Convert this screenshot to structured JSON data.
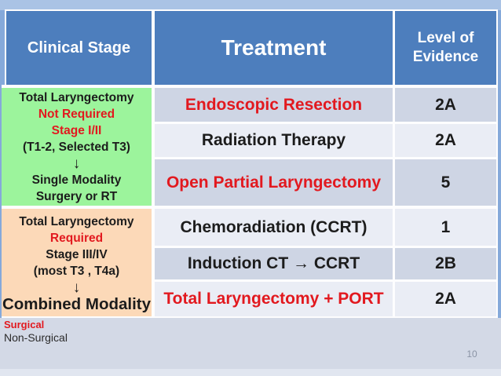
{
  "colors": {
    "slide_border_blue": "#85a9da",
    "top_strip_blue": "#aac3e5",
    "header_blue": "#4d7ebd",
    "header_text": "#ffffff",
    "row_dark": "#ced5e4",
    "row_light": "#eaedf5",
    "stage_green": "#9cf49c",
    "stage_peach": "#fcd9b8",
    "red_text": "#e2191f",
    "black_text": "#1c1c1c",
    "below_table_bg": "#d3d9e6",
    "bottom_strip_bg": "#e1e6f0",
    "page_number_gray": "#8b94a5"
  },
  "table": {
    "header": {
      "clinical_stage": "Clinical Stage",
      "treatment": "Treatment",
      "level_line1": "Level of",
      "level_line2": "Evidence"
    },
    "stage_groups": [
      {
        "name": "early-stage-single-modality",
        "lines": [
          {
            "text": "Total Laryngectomy",
            "color": "black"
          },
          {
            "text": "Not Required",
            "color": "red"
          },
          {
            "text": "Stage I/II",
            "color": "red"
          },
          {
            "text": "(T1-2, Selected T3)",
            "color": "black"
          },
          {
            "text": "↓",
            "color": "black",
            "icon": "down-arrow"
          },
          {
            "text": "Single Modality",
            "color": "black"
          },
          {
            "text": "Surgery or RT",
            "color": "black"
          }
        ]
      },
      {
        "name": "advanced-stage-combined-modality",
        "lines": [
          {
            "text": "Total Laryngectomy",
            "color": "black"
          },
          {
            "text": "Required",
            "color": "red"
          },
          {
            "text": "Stage III/IV",
            "color": "black"
          },
          {
            "text": "(most T3 , T4a)",
            "color": "black"
          },
          {
            "text": "↓",
            "color": "black",
            "icon": "down-arrow"
          },
          {
            "text": "Combined Modality",
            "color": "black"
          }
        ]
      }
    ],
    "rows": [
      {
        "treatment": "Endoscopic Resection",
        "treatment_color": "red",
        "level": "2A"
      },
      {
        "treatment": "Radiation Therapy",
        "treatment_color": "black",
        "level": "2A"
      },
      {
        "treatment": "Open Partial Laryngectomy",
        "treatment_color": "red",
        "level": "5"
      },
      {
        "treatment": "Chemoradiation (CCRT)",
        "treatment_color": "black",
        "level": "1"
      },
      {
        "treatment": "Induction CT →  CCRT",
        "treatment_color": "black",
        "level": "2B"
      },
      {
        "treatment": "Total Laryngectomy + PORT",
        "treatment_color": "red",
        "level": "2A"
      }
    ]
  },
  "footer": {
    "legend_surgical": "Surgical",
    "legend_non_surgical": "Non-Surgical",
    "page_number": "10"
  }
}
